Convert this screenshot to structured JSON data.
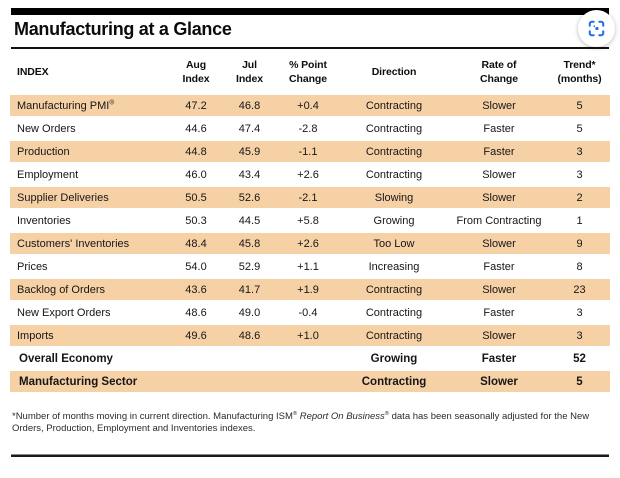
{
  "header": {
    "title": "Manufacturing at a Glance",
    "scan_button_icon": "scan-icon"
  },
  "colors": {
    "row_shade": "#F6D1A6",
    "rule_black": "#111111",
    "icon_blue": "#2170E8"
  },
  "chart_data": {
    "type": "table",
    "title": "Manufacturing at a Glance",
    "columns": [
      {
        "id": "index",
        "lines": [
          "INDEX"
        ]
      },
      {
        "id": "aug",
        "lines": [
          "Aug",
          "Index"
        ]
      },
      {
        "id": "jul",
        "lines": [
          "Jul",
          "Index"
        ]
      },
      {
        "id": "change",
        "lines": [
          "% Point",
          "Change"
        ]
      },
      {
        "id": "direction",
        "lines": [
          "Direction"
        ]
      },
      {
        "id": "rate",
        "lines": [
          "Rate of",
          "Change"
        ]
      },
      {
        "id": "trend",
        "lines": [
          "Trend*",
          "(months)"
        ]
      }
    ],
    "rows": [
      {
        "label": "Manufacturing PMI",
        "label_sup": "®",
        "aug": "47.2",
        "jul": "46.8",
        "change": "+0.4",
        "direction": "Contracting",
        "rate": "Slower",
        "trend": "5"
      },
      {
        "label": "New Orders",
        "aug": "44.6",
        "jul": "47.4",
        "change": "-2.8",
        "direction": "Contracting",
        "rate": "Faster",
        "trend": "5"
      },
      {
        "label": "Production",
        "aug": "44.8",
        "jul": "45.9",
        "change": "-1.1",
        "direction": "Contracting",
        "rate": "Faster",
        "trend": "3"
      },
      {
        "label": "Employment",
        "aug": "46.0",
        "jul": "43.4",
        "change": "+2.6",
        "direction": "Contracting",
        "rate": "Slower",
        "trend": "3"
      },
      {
        "label": "Supplier Deliveries",
        "aug": "50.5",
        "jul": "52.6",
        "change": "-2.1",
        "direction": "Slowing",
        "rate": "Slower",
        "trend": "2"
      },
      {
        "label": "Inventories",
        "aug": "50.3",
        "jul": "44.5",
        "change": "+5.8",
        "direction": "Growing",
        "rate": "From Contracting",
        "trend": "1"
      },
      {
        "label": "Customers' Inventories",
        "aug": "48.4",
        "jul": "45.8",
        "change": "+2.6",
        "direction": "Too Low",
        "rate": "Slower",
        "trend": "9"
      },
      {
        "label": "Prices",
        "aug": "54.0",
        "jul": "52.9",
        "change": "+1.1",
        "direction": "Increasing",
        "rate": "Faster",
        "trend": "8"
      },
      {
        "label": "Backlog of Orders",
        "aug": "43.6",
        "jul": "41.7",
        "change": "+1.9",
        "direction": "Contracting",
        "rate": "Slower",
        "trend": "23"
      },
      {
        "label": "New Export Orders",
        "aug": "48.6",
        "jul": "49.0",
        "change": "-0.4",
        "direction": "Contracting",
        "rate": "Faster",
        "trend": "3"
      },
      {
        "label": "Imports",
        "aug": "49.6",
        "jul": "48.6",
        "change": "+1.0",
        "direction": "Contracting",
        "rate": "Slower",
        "trend": "3"
      }
    ],
    "summary_rows": [
      {
        "label": "Overall Economy",
        "aug": "",
        "jul": "",
        "change": "",
        "direction": "Growing",
        "rate": "Faster",
        "trend": "52"
      },
      {
        "label": "Manufacturing Sector",
        "aug": "",
        "jul": "",
        "change": "",
        "direction": "Contracting",
        "rate": "Slower",
        "trend": "5"
      }
    ]
  },
  "footnote": {
    "segments": [
      {
        "text": "*Number of months moving in current direction. Manufacturing ISM",
        "style": "normal"
      },
      {
        "text": "®",
        "style": "sup"
      },
      {
        "text": " ",
        "style": "normal"
      },
      {
        "text": "Report On Business",
        "style": "italic"
      },
      {
        "text": "®",
        "style": "sup"
      },
      {
        "text": " data has been seasonally adjusted for the New Orders, Production, Employment and Inventories indexes.",
        "style": "normal"
      }
    ]
  }
}
